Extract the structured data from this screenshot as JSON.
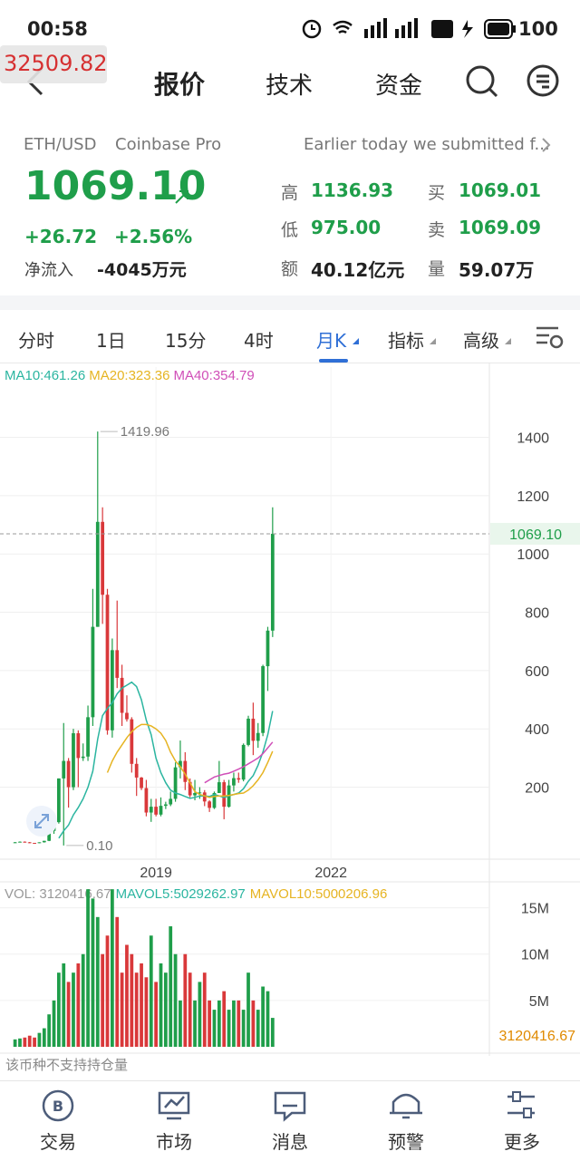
{
  "status_bar": {
    "time": "00:58",
    "battery": "100"
  },
  "overlay_value": "32509.82",
  "nav": {
    "tabs": [
      "报价",
      "技术",
      "资金"
    ]
  },
  "quote": {
    "pair": "ETH/USD",
    "exchange": "Coinbase Pro",
    "news": "Earlier today we submitted f...",
    "price": "1069.10",
    "change": "+26.72",
    "change_pct": "+2.56%",
    "net_inflow_label": "净流入",
    "net_inflow": "-4045万元",
    "stats": [
      {
        "label": "高",
        "value": "1136.93"
      },
      {
        "label": "买",
        "value": "1069.01"
      },
      {
        "label": "低",
        "value": "975.00"
      },
      {
        "label": "卖",
        "value": "1069.09"
      },
      {
        "label": "额",
        "value": "40.12亿元"
      },
      {
        "label": "量",
        "value": "59.07万"
      }
    ]
  },
  "period_tabs": [
    "分时",
    "1日",
    "15分",
    "4时",
    "月K",
    "指标",
    "高级"
  ],
  "chart_data": {
    "type": "candlestick",
    "up_color": "#1f9e4a",
    "down_color": "#d9383a",
    "xlim": [
      -3.1,
      97.6
    ],
    "xticks": [
      {
        "value": 29,
        "label": "2019"
      },
      {
        "value": 65,
        "label": "2022"
      }
    ],
    "ylim": [
      -47,
      1641
    ],
    "yticks": [
      200,
      400,
      600,
      800,
      1000,
      1200,
      1400
    ],
    "grid": true,
    "high_label": "1419.96",
    "low_label": "0.10",
    "last_price_label": "1069.10",
    "candles": [
      [
        10,
        12,
        9,
        11
      ],
      [
        11,
        14,
        11,
        13
      ],
      [
        13,
        14,
        10,
        11
      ],
      [
        11,
        12,
        8,
        9
      ],
      [
        9,
        9,
        7,
        8
      ],
      [
        8,
        11,
        8,
        11
      ],
      [
        11,
        16,
        10,
        16
      ],
      [
        16,
        53,
        15,
        50
      ],
      [
        50,
        98,
        40,
        80
      ],
      [
        80,
        230,
        75,
        230
      ],
      [
        230,
        420,
        0.1,
        290
      ],
      [
        290,
        300,
        130,
        200
      ],
      [
        200,
        400,
        190,
        385
      ],
      [
        385,
        395,
        200,
        300
      ],
      [
        300,
        350,
        290,
        305
      ],
      [
        305,
        480,
        290,
        440
      ],
      [
        440,
        880,
        410,
        750
      ],
      [
        750,
        1419.96,
        750,
        1110
      ],
      [
        1110,
        1160,
        760,
        860
      ],
      [
        860,
        880,
        380,
        395
      ],
      [
        395,
        710,
        370,
        670
      ],
      [
        670,
        840,
        540,
        575
      ],
      [
        575,
        620,
        410,
        455
      ],
      [
        455,
        515,
        425,
        433
      ],
      [
        433,
        440,
        250,
        280
      ],
      [
        280,
        300,
        170,
        233
      ],
      [
        233,
        235,
        190,
        197
      ],
      [
        197,
        225,
        100,
        113
      ],
      [
        113,
        160,
        81,
        133
      ],
      [
        133,
        160,
        100,
        106
      ],
      [
        106,
        165,
        100,
        136
      ],
      [
        136,
        150,
        125,
        141
      ],
      [
        141,
        185,
        135,
        160
      ],
      [
        160,
        285,
        150,
        268
      ],
      [
        268,
        360,
        230,
        290
      ],
      [
        290,
        320,
        190,
        218
      ],
      [
        218,
        230,
        165,
        172
      ],
      [
        172,
        225,
        155,
        180
      ],
      [
        180,
        200,
        160,
        182
      ],
      [
        182,
        190,
        135,
        151
      ],
      [
        151,
        155,
        115,
        129
      ],
      [
        129,
        185,
        125,
        180
      ],
      [
        180,
        290,
        180,
        217
      ],
      [
        217,
        225,
        90,
        133
      ],
      [
        133,
        225,
        130,
        206
      ],
      [
        206,
        250,
        185,
        231
      ],
      [
        231,
        250,
        215,
        226
      ],
      [
        226,
        350,
        220,
        345
      ],
      [
        345,
        445,
        340,
        435
      ],
      [
        435,
        490,
        310,
        359
      ],
      [
        359,
        420,
        335,
        386
      ],
      [
        386,
        620,
        375,
        615
      ],
      [
        615,
        750,
        530,
        737
      ],
      [
        737,
        1160,
        715,
        1069.1
      ]
    ],
    "series": [
      {
        "name": "MA10:461.26",
        "color": "#2bb5a0",
        "values": [
          null,
          null,
          null,
          null,
          null,
          null,
          null,
          null,
          null,
          25,
          50,
          70,
          105,
          130,
          160,
          200,
          255,
          365,
          445,
          470,
          490,
          520,
          540,
          550,
          560,
          545,
          500,
          430,
          380,
          300,
          250,
          215,
          190,
          180,
          175,
          168,
          162,
          165,
          170,
          170,
          168,
          175,
          170,
          165,
          170,
          175,
          180,
          195,
          220,
          240,
          275,
          320,
          380,
          461.26
        ]
      },
      {
        "name": "MA20:323.36",
        "color": "#e6b422",
        "values": [
          null,
          null,
          null,
          null,
          null,
          null,
          null,
          null,
          null,
          null,
          null,
          null,
          null,
          null,
          null,
          null,
          null,
          null,
          null,
          250,
          290,
          320,
          345,
          370,
          390,
          405,
          415,
          415,
          410,
          400,
          385,
          360,
          320,
          290,
          270,
          245,
          215,
          185,
          175,
          170,
          165,
          168,
          170,
          170,
          172,
          175,
          178,
          180,
          190,
          205,
          225,
          250,
          285,
          323.36
        ]
      },
      {
        "name": "MA40:354.79",
        "color": "#d04fb8",
        "values": [
          null,
          null,
          null,
          null,
          null,
          null,
          null,
          null,
          null,
          null,
          null,
          null,
          null,
          null,
          null,
          null,
          null,
          null,
          null,
          null,
          null,
          null,
          null,
          null,
          null,
          null,
          null,
          null,
          null,
          null,
          null,
          null,
          null,
          null,
          null,
          null,
          null,
          null,
          null,
          215,
          225,
          235,
          240,
          245,
          248,
          255,
          262,
          270,
          280,
          290,
          300,
          315,
          335,
          354.79
        ]
      }
    ],
    "volume": {
      "legend": [
        {
          "text": "VOL: 3120416.67",
          "color": "#999999"
        },
        {
          "text": "MAVOL5:5029262.97",
          "color": "#2bb5a0"
        },
        {
          "text": "MAVOL10:5000206.96",
          "color": "#e6b422"
        }
      ],
      "ylim": [
        0,
        17.6
      ],
      "yticks": [
        {
          "value": 5,
          "label": "5M"
        },
        {
          "value": 10,
          "label": "10M"
        },
        {
          "value": 15,
          "label": "15M"
        }
      ],
      "values": [
        0.8,
        0.9,
        1.0,
        1.2,
        1.0,
        1.5,
        2.0,
        3.5,
        5,
        8,
        9,
        7,
        8,
        9,
        10,
        17,
        16,
        14,
        10,
        12,
        17,
        14,
        8,
        11,
        10,
        8,
        9,
        7.5,
        12,
        7,
        9,
        8,
        13,
        10,
        5,
        10,
        8,
        5,
        7,
        8,
        5,
        4,
        5,
        6,
        4,
        5,
        5,
        4,
        8,
        5,
        4,
        6.5,
        6,
        3.12041667
      ],
      "last_label": "3120416.67"
    }
  },
  "position_note": "该币种不支持持仓量",
  "footer": [
    "交易",
    "市场",
    "消息",
    "预警",
    "更多"
  ]
}
